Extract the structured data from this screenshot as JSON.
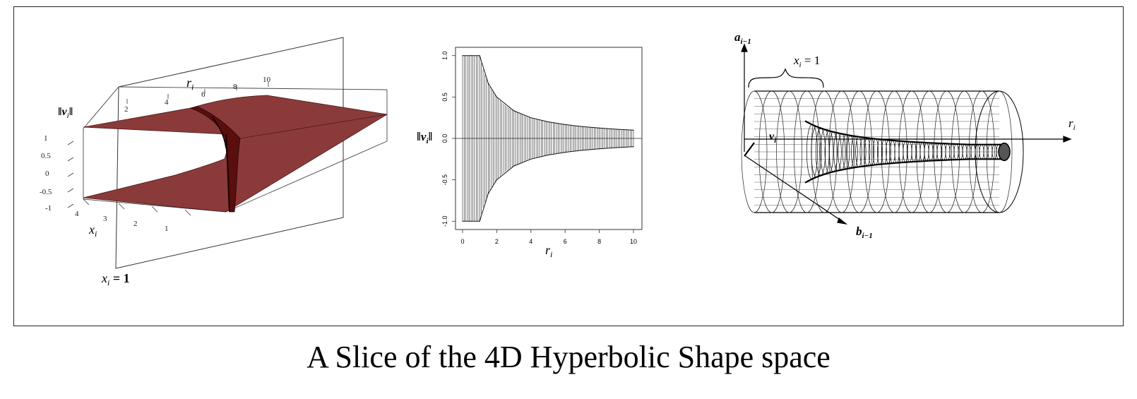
{
  "panel_left": {
    "axis_v": "‖v",
    "axis_v_sub": "i",
    "axis_r": "r",
    "axis_r_sub": "i",
    "axis_x": "x",
    "axis_x_sub": "i",
    "slice_label": "x",
    "slice_label_sub": "i",
    "slice_label_eq": " = 1",
    "r_ticks": [
      "2",
      "4",
      "6",
      "8",
      "10"
    ],
    "v_ticks": [
      "1",
      "0.5",
      "0",
      "-0.5",
      "-1"
    ],
    "x_ticks": [
      "4",
      "3",
      "2",
      "1"
    ],
    "surface_color": "#8b3a3a"
  },
  "chart_data": {
    "type": "line",
    "x": [
      0,
      0.5,
      1,
      1.5,
      2,
      3,
      4,
      5,
      6,
      7,
      8,
      9,
      10
    ],
    "series": [
      {
        "values": [
          1,
          1,
          1,
          0.667,
          0.5,
          0.333,
          0.25,
          0.2,
          0.167,
          0.143,
          0.125,
          0.111,
          0.1
        ]
      },
      {
        "values": [
          -1,
          -1,
          -1,
          -0.667,
          -0.5,
          -0.333,
          -0.25,
          -0.2,
          -0.167,
          -0.143,
          -0.125,
          -0.111,
          -0.1
        ]
      }
    ],
    "xlim": [
      0,
      10
    ],
    "ylim": [
      -1.1,
      1.1
    ],
    "x_ticks": [
      "0",
      "2",
      "4",
      "6",
      "8",
      "10"
    ],
    "y_ticks": [
      "-1.0",
      "-0.5",
      "0.0",
      "0.5",
      "1.0"
    ],
    "xlabel": "r",
    "xlabel_sub": "i",
    "ylabel": "‖v",
    "ylabel_sub": "i",
    "grid": false
  },
  "panel_right": {
    "axis_a": "a",
    "axis_a_sub": "i−1",
    "axis_b": "b",
    "axis_b_sub": "i−1",
    "axis_r": "r",
    "axis_r_sub": "i",
    "vector_label": "v",
    "vector_label_sub": "i",
    "brace_label": "x",
    "brace_label_sub": "i",
    "brace_label_eq": " = 1"
  },
  "caption": "A Slice of the 4D Hyperbolic Shape space"
}
